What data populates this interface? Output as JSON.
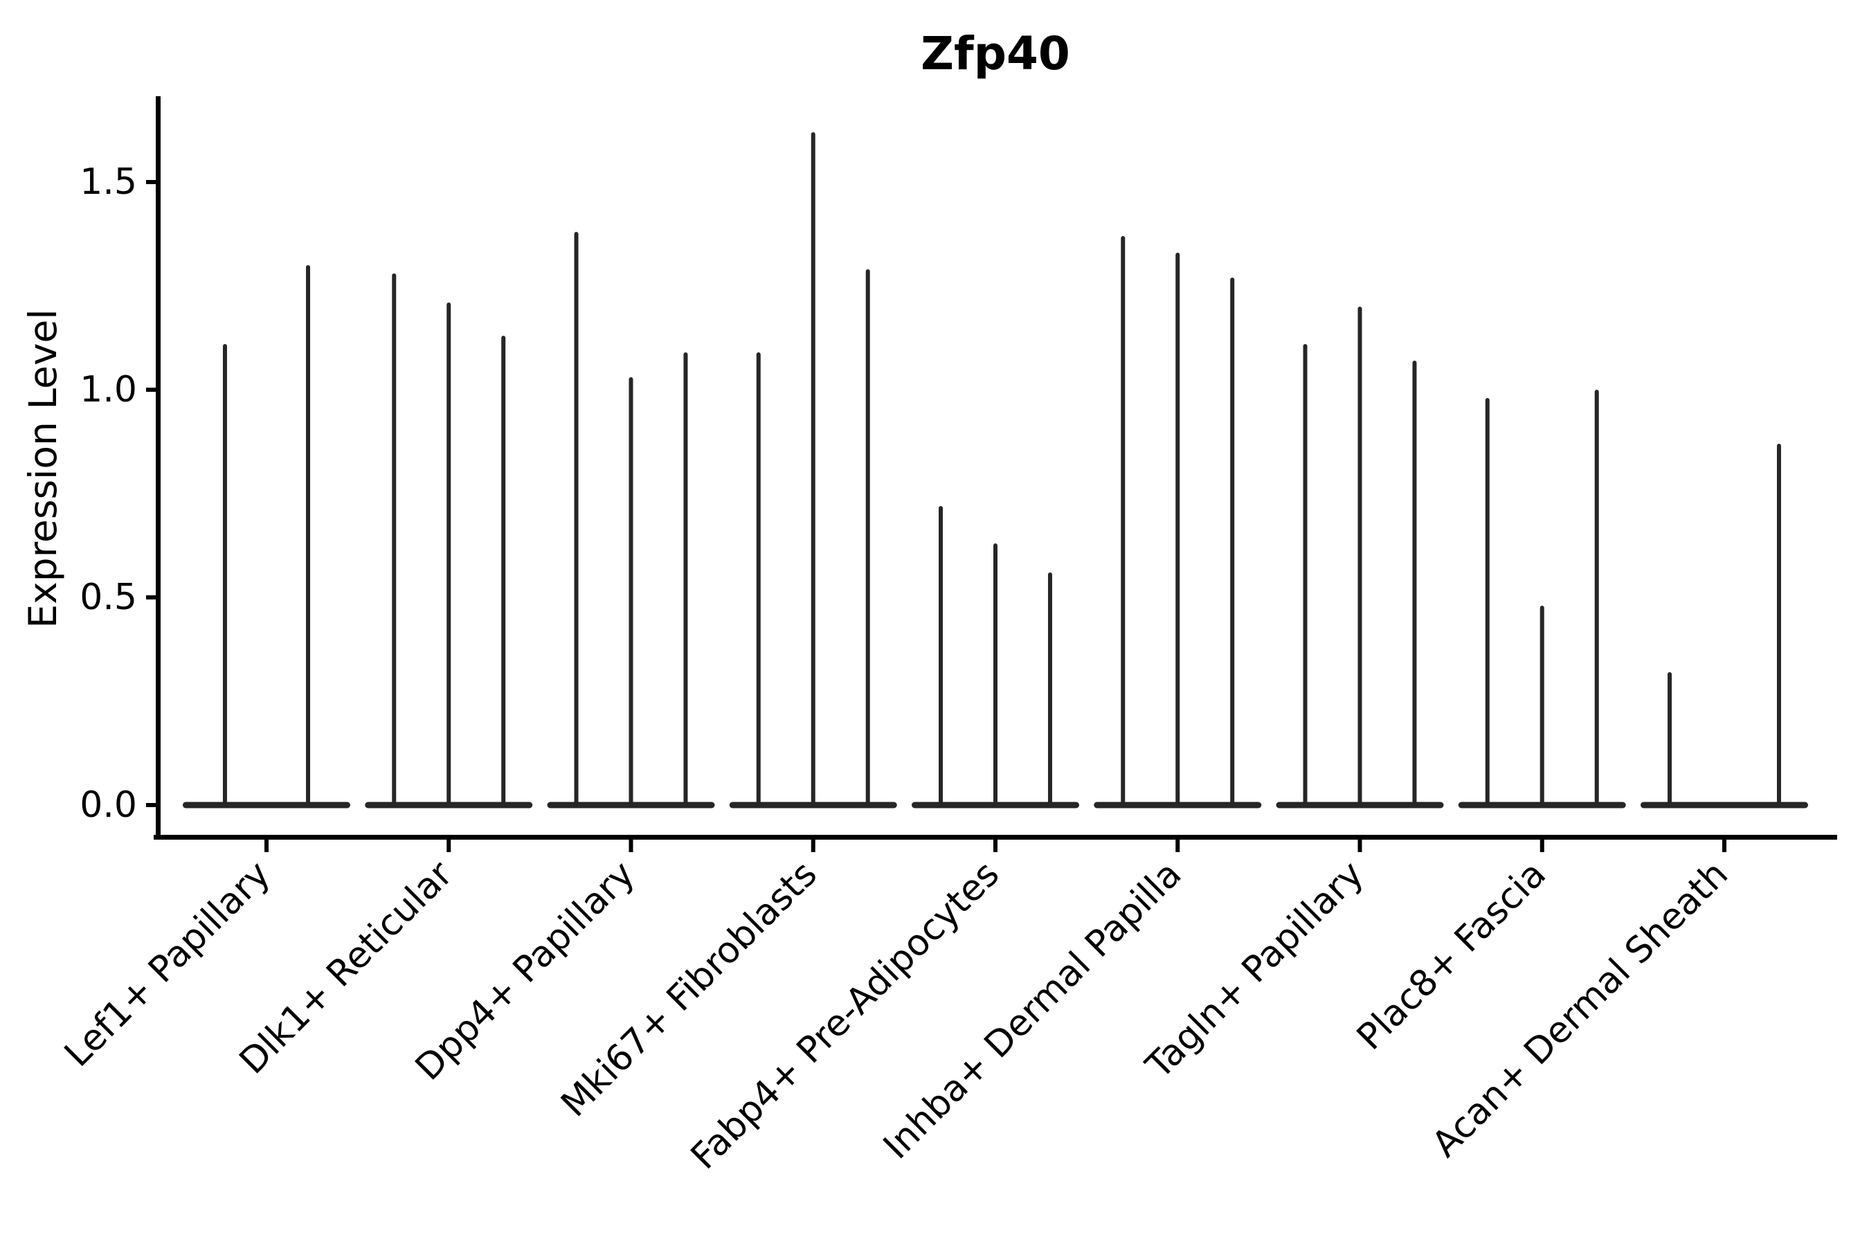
{
  "figure": {
    "background": "#ffffff"
  },
  "chart_data": {
    "type": "violin",
    "title": "Zfp40",
    "ylabel": "Expression Level",
    "xlabel": "",
    "ytick_labels": [
      "0.0",
      "0.5",
      "1.0",
      "1.5"
    ],
    "ytick_values": [
      0.0,
      0.5,
      1.0,
      1.5
    ],
    "ylim": [
      -0.08,
      1.71
    ],
    "grid": false,
    "legend_position": "none",
    "x_labels_rotation_deg": 45,
    "categories": [
      "Lef1+ Papillary",
      "Dlk1+ Reticular",
      "Dpp4+ Papillary",
      "Mki67+ Fibroblasts",
      "Fabp4+ Pre-Adipocytes",
      "Inhba+ Dermal Papilla",
      "Tagln+ Papillary",
      "Plac8+ Fascia",
      "Acan+ Dermal Sheath"
    ],
    "groups": [
      {
        "category": "Lef1+ Papillary",
        "violins": [
          {
            "x_offset": -0.228,
            "peak": 1.11
          },
          {
            "x_offset": 0.228,
            "peak": 1.3
          }
        ]
      },
      {
        "category": "Dlk1+ Reticular",
        "violins": [
          {
            "x_offset": -0.3,
            "peak": 1.28
          },
          {
            "x_offset": 0.0,
            "peak": 1.21
          },
          {
            "x_offset": 0.3,
            "peak": 1.13
          }
        ]
      },
      {
        "category": "Dpp4+ Papillary",
        "violins": [
          {
            "x_offset": -0.3,
            "peak": 1.38
          },
          {
            "x_offset": 0.0,
            "peak": 1.03
          },
          {
            "x_offset": 0.3,
            "peak": 1.09
          }
        ]
      },
      {
        "category": "Mki67+ Fibroblasts",
        "violins": [
          {
            "x_offset": -0.3,
            "peak": 1.09
          },
          {
            "x_offset": 0.0,
            "peak": 1.62
          },
          {
            "x_offset": 0.3,
            "peak": 1.29
          }
        ]
      },
      {
        "category": "Fabp4+ Pre-Adipocytes",
        "violins": [
          {
            "x_offset": -0.3,
            "peak": 0.72
          },
          {
            "x_offset": 0.0,
            "peak": 0.63
          },
          {
            "x_offset": 0.3,
            "peak": 0.56
          }
        ]
      },
      {
        "category": "Inhba+ Dermal Papilla",
        "violins": [
          {
            "x_offset": -0.3,
            "peak": 1.37
          },
          {
            "x_offset": 0.0,
            "peak": 1.33
          },
          {
            "x_offset": 0.3,
            "peak": 1.27
          }
        ]
      },
      {
        "category": "Tagln+ Papillary",
        "violins": [
          {
            "x_offset": -0.3,
            "peak": 1.11
          },
          {
            "x_offset": 0.0,
            "peak": 1.2
          },
          {
            "x_offset": 0.3,
            "peak": 1.07
          }
        ]
      },
      {
        "category": "Plac8+ Fascia",
        "violins": [
          {
            "x_offset": -0.3,
            "peak": 0.98
          },
          {
            "x_offset": 0.0,
            "peak": 0.48
          },
          {
            "x_offset": 0.3,
            "peak": 1.0
          }
        ]
      },
      {
        "category": "Acan+ Dermal Sheath",
        "violins": [
          {
            "x_offset": -0.3,
            "peak": 0.32
          },
          {
            "x_offset": 0.0,
            "peak": 0.0
          },
          {
            "x_offset": 0.3,
            "peak": 0.87
          }
        ]
      }
    ],
    "colors": {
      "violin": "#262626",
      "axis": "#000000",
      "text": "#000000",
      "background": "#ffffff"
    }
  }
}
